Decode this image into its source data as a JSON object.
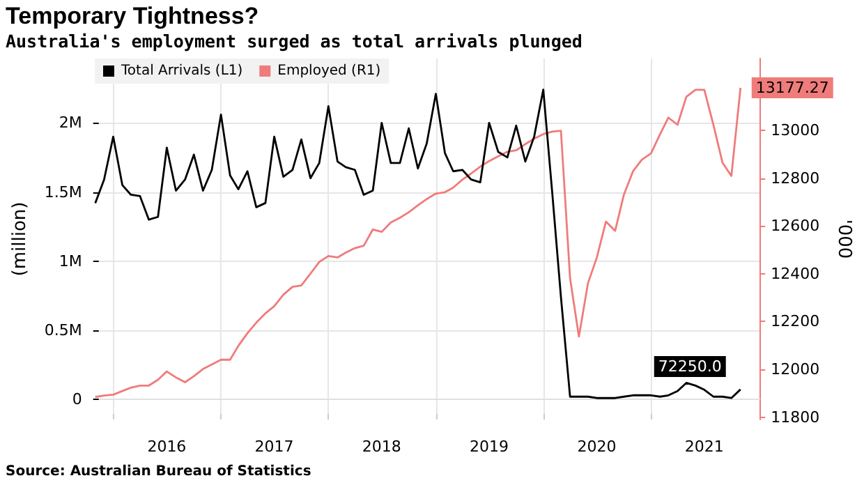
{
  "chart_data": {
    "type": "line",
    "title": "Temporary Tightness?",
    "subtitle": "Australia's employment surged as total arrivals plunged",
    "ylabel": "(million)",
    "y2label": "'000",
    "annotations": [
      "Source: Australian Bureau of Statistics"
    ],
    "x": [
      "2015-11",
      "2015-12",
      "2016-01",
      "2016-02",
      "2016-03",
      "2016-04",
      "2016-05",
      "2016-06",
      "2016-07",
      "2016-08",
      "2016-09",
      "2016-10",
      "2016-11",
      "2016-12",
      "2017-01",
      "2017-02",
      "2017-03",
      "2017-04",
      "2017-05",
      "2017-06",
      "2017-07",
      "2017-08",
      "2017-09",
      "2017-10",
      "2017-11",
      "2017-12",
      "2018-01",
      "2018-02",
      "2018-03",
      "2018-04",
      "2018-05",
      "2018-06",
      "2018-07",
      "2018-08",
      "2018-09",
      "2018-10",
      "2018-11",
      "2018-12",
      "2019-01",
      "2019-02",
      "2019-03",
      "2019-04",
      "2019-05",
      "2019-06",
      "2019-07",
      "2019-08",
      "2019-09",
      "2019-10",
      "2019-11",
      "2019-12",
      "2020-01",
      "2020-02",
      "2020-03",
      "2020-04",
      "2020-05",
      "2020-06",
      "2020-07",
      "2020-08",
      "2020-09",
      "2020-10",
      "2020-11",
      "2020-12",
      "2021-01",
      "2021-02",
      "2021-03",
      "2021-04",
      "2021-05",
      "2021-06",
      "2021-07",
      "2021-08",
      "2021-09",
      "2021-10",
      "2021-11"
    ],
    "series": [
      {
        "name": "Total Arrivals (L1)",
        "color": "#000000",
        "values": [
          1420000,
          1590000,
          1900000,
          1550000,
          1480000,
          1470000,
          1300000,
          1320000,
          1820000,
          1510000,
          1590000,
          1770000,
          1510000,
          1660000,
          2060000,
          1620000,
          1520000,
          1650000,
          1390000,
          1420000,
          1900000,
          1610000,
          1660000,
          1880000,
          1600000,
          1710000,
          2120000,
          1720000,
          1680000,
          1660000,
          1480000,
          1510000,
          2000000,
          1710000,
          1710000,
          1960000,
          1670000,
          1850000,
          2210000,
          1780000,
          1650000,
          1660000,
          1590000,
          1570000,
          2000000,
          1790000,
          1750000,
          1980000,
          1720000,
          1900000,
          2240000,
          1480000,
          740000,
          20000,
          20000,
          20000,
          10000,
          10000,
          10000,
          20000,
          30000,
          30000,
          30000,
          20000,
          30000,
          60000,
          120000,
          100000,
          70000,
          20000,
          20000,
          10000,
          72250
        ],
        "value_labels": [
          null,
          null,
          null,
          null,
          null,
          null,
          null,
          null,
          null,
          null,
          null,
          null,
          null,
          null,
          null,
          null,
          null,
          null,
          null,
          null,
          null,
          null,
          null,
          null,
          null,
          null,
          null,
          null,
          null,
          null,
          null,
          null,
          null,
          null,
          null,
          null,
          null,
          null,
          null,
          null,
          null,
          null,
          null,
          null,
          null,
          null,
          null,
          null,
          null,
          null,
          null,
          null,
          null,
          null,
          null,
          null,
          null,
          null,
          null,
          null,
          null,
          null,
          null,
          null,
          null,
          null,
          null,
          null,
          null,
          null,
          null,
          null,
          "72250.0"
        ]
      },
      {
        "name": "Employed (R1)",
        "color": "#f07b7b",
        "axis": "y2",
        "values": [
          11884,
          11890,
          11894,
          11909,
          11923,
          11932,
          11932,
          11956,
          11991,
          11966,
          11946,
          11971,
          12001,
          12020,
          12040,
          12040,
          12098,
          12151,
          12195,
          12234,
          12264,
          12312,
          12345,
          12351,
          12400,
          12449,
          12474,
          12468,
          12488,
          12507,
          12517,
          12585,
          12575,
          12614,
          12634,
          12657,
          12686,
          12712,
          12735,
          12741,
          12760,
          12793,
          12819,
          12848,
          12871,
          12891,
          12910,
          12916,
          12942,
          12965,
          12984,
          12994,
          12998,
          12381,
          12137,
          12361,
          12468,
          12618,
          12579,
          12731,
          12829,
          12877,
          12903,
          12984,
          13053,
          13023,
          13140,
          13169,
          13169,
          13023,
          12864,
          12809,
          13177.27
        ],
        "value_labels": [
          null,
          null,
          null,
          null,
          null,
          null,
          null,
          null,
          null,
          null,
          null,
          null,
          null,
          null,
          null,
          null,
          null,
          null,
          null,
          null,
          null,
          null,
          null,
          null,
          null,
          null,
          null,
          null,
          null,
          null,
          null,
          null,
          null,
          null,
          null,
          null,
          null,
          null,
          null,
          null,
          null,
          null,
          null,
          null,
          null,
          null,
          null,
          null,
          null,
          null,
          null,
          null,
          null,
          null,
          null,
          null,
          null,
          null,
          null,
          null,
          null,
          null,
          null,
          null,
          null,
          null,
          null,
          null,
          null,
          null,
          null,
          null,
          "13177.27"
        ]
      }
    ],
    "xlim": [
      "2015-10-25",
      "2022-01-05"
    ],
    "xticks": [
      {
        "value": "2016-01-01",
        "label": null
      },
      {
        "value": "2016-07-01",
        "label": "2016"
      },
      {
        "value": "2017-01-01",
        "label": null
      },
      {
        "value": "2017-07-01",
        "label": "2017"
      },
      {
        "value": "2018-01-01",
        "label": null
      },
      {
        "value": "2018-07-01",
        "label": "2018"
      },
      {
        "value": "2019-01-01",
        "label": null
      },
      {
        "value": "2019-07-01",
        "label": "2019"
      },
      {
        "value": "2020-01-01",
        "label": null
      },
      {
        "value": "2020-07-01",
        "label": "2020"
      },
      {
        "value": "2021-01-01",
        "label": null
      },
      {
        "value": "2021-07-01",
        "label": "2021"
      }
    ],
    "ylim": [
      -145000,
      2465000
    ],
    "yticks": [
      {
        "value": 0,
        "label": "0"
      },
      {
        "value": 500000,
        "label": "0.5M"
      },
      {
        "value": 1000000,
        "label": "1M"
      },
      {
        "value": 1500000,
        "label": "1.5M"
      },
      {
        "value": 2000000,
        "label": "2M"
      }
    ],
    "y2lim": [
      11790,
      13300
    ],
    "y2ticks": [
      11800,
      12000,
      12200,
      12400,
      12600,
      12800,
      13000
    ],
    "grid": true,
    "legend": "top left",
    "marker": "none",
    "line_style": "solid"
  }
}
